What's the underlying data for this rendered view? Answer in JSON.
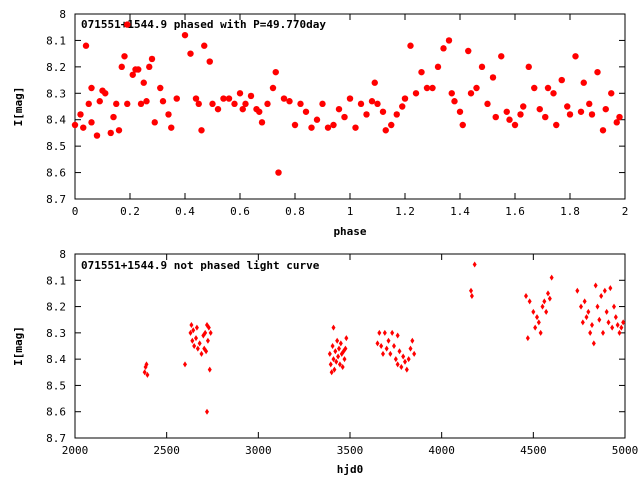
{
  "chart_data": [
    {
      "type": "scatter",
      "title": "071551+1544.9 phased with P=49.770day",
      "xlabel": "phase",
      "ylabel": "I[mag]",
      "xlim": [
        0,
        2
      ],
      "ylim": [
        7.99,
        8.7
      ],
      "y_inverted": true,
      "xticks": [
        "0",
        "0.2",
        "0.4",
        "0.6",
        "0.8",
        "1",
        "1.2",
        "1.4",
        "1.6",
        "1.8",
        "2"
      ],
      "yticks": [
        "8",
        "8.1",
        "8.2",
        "8.3",
        "8.4",
        "8.5",
        "8.6",
        "8.7"
      ],
      "marker": "filled-circle-large",
      "color": "#ff0000",
      "series": [
        {
          "points": [
            [
              0.0,
              8.42
            ],
            [
              0.02,
              8.38
            ],
            [
              0.03,
              8.43
            ],
            [
              0.04,
              8.12
            ],
            [
              0.05,
              8.34
            ],
            [
              0.06,
              8.28
            ],
            [
              0.06,
              8.41
            ],
            [
              0.08,
              8.46
            ],
            [
              0.09,
              8.33
            ],
            [
              0.1,
              8.29
            ],
            [
              0.11,
              8.3
            ],
            [
              0.13,
              8.45
            ],
            [
              0.14,
              8.39
            ],
            [
              0.15,
              8.34
            ],
            [
              0.16,
              8.44
            ],
            [
              0.17,
              8.2
            ],
            [
              0.18,
              8.16
            ],
            [
              0.19,
              8.04
            ],
            [
              0.19,
              8.34
            ],
            [
              0.21,
              8.23
            ],
            [
              0.22,
              8.21
            ],
            [
              0.23,
              8.21
            ],
            [
              0.24,
              8.34
            ],
            [
              0.25,
              8.26
            ],
            [
              0.26,
              8.33
            ],
            [
              0.27,
              8.2
            ],
            [
              0.28,
              8.17
            ],
            [
              0.29,
              8.41
            ],
            [
              0.31,
              8.28
            ],
            [
              0.32,
              8.33
            ],
            [
              0.34,
              8.38
            ],
            [
              0.35,
              8.43
            ],
            [
              0.37,
              8.32
            ],
            [
              0.4,
              8.08
            ],
            [
              0.42,
              8.15
            ],
            [
              0.44,
              8.32
            ],
            [
              0.45,
              8.34
            ],
            [
              0.46,
              8.44
            ],
            [
              0.47,
              8.12
            ],
            [
              0.49,
              8.18
            ],
            [
              0.5,
              8.34
            ],
            [
              0.52,
              8.36
            ],
            [
              0.54,
              8.32
            ],
            [
              0.56,
              8.32
            ],
            [
              0.58,
              8.34
            ],
            [
              0.6,
              8.3
            ],
            [
              0.61,
              8.36
            ],
            [
              0.62,
              8.34
            ],
            [
              0.64,
              8.31
            ],
            [
              0.66,
              8.36
            ],
            [
              0.67,
              8.37
            ],
            [
              0.68,
              8.41
            ],
            [
              0.7,
              8.34
            ],
            [
              0.72,
              8.28
            ],
            [
              0.73,
              8.22
            ],
            [
              0.74,
              8.6
            ],
            [
              0.76,
              8.32
            ],
            [
              0.78,
              8.33
            ],
            [
              0.8,
              8.42
            ],
            [
              0.82,
              8.34
            ],
            [
              0.84,
              8.37
            ],
            [
              0.86,
              8.43
            ],
            [
              0.88,
              8.4
            ],
            [
              0.9,
              8.34
            ],
            [
              0.92,
              8.43
            ],
            [
              0.94,
              8.42
            ],
            [
              0.96,
              8.36
            ],
            [
              0.98,
              8.39
            ],
            [
              1.0,
              8.32
            ],
            [
              1.02,
              8.43
            ],
            [
              1.04,
              8.34
            ],
            [
              1.06,
              8.38
            ],
            [
              1.08,
              8.33
            ],
            [
              1.09,
              8.26
            ],
            [
              1.1,
              8.34
            ],
            [
              1.12,
              8.37
            ],
            [
              1.13,
              8.44
            ],
            [
              1.15,
              8.42
            ],
            [
              1.17,
              8.38
            ],
            [
              1.19,
              8.35
            ],
            [
              1.2,
              8.32
            ],
            [
              1.22,
              8.12
            ],
            [
              1.24,
              8.3
            ],
            [
              1.26,
              8.22
            ],
            [
              1.28,
              8.28
            ],
            [
              1.3,
              8.28
            ],
            [
              1.32,
              8.2
            ],
            [
              1.34,
              8.13
            ],
            [
              1.36,
              8.1
            ],
            [
              1.37,
              8.3
            ],
            [
              1.38,
              8.33
            ],
            [
              1.4,
              8.37
            ],
            [
              1.41,
              8.42
            ],
            [
              1.43,
              8.14
            ],
            [
              1.44,
              8.3
            ],
            [
              1.46,
              8.28
            ],
            [
              1.48,
              8.2
            ],
            [
              1.5,
              8.34
            ],
            [
              1.52,
              8.24
            ],
            [
              1.53,
              8.39
            ],
            [
              1.55,
              8.16
            ],
            [
              1.57,
              8.37
            ],
            [
              1.58,
              8.4
            ],
            [
              1.6,
              8.42
            ],
            [
              1.62,
              8.38
            ],
            [
              1.63,
              8.35
            ],
            [
              1.65,
              8.2
            ],
            [
              1.67,
              8.28
            ],
            [
              1.69,
              8.36
            ],
            [
              1.71,
              8.39
            ],
            [
              1.72,
              8.28
            ],
            [
              1.74,
              8.3
            ],
            [
              1.75,
              8.42
            ],
            [
              1.77,
              8.25
            ],
            [
              1.79,
              8.35
            ],
            [
              1.8,
              8.38
            ],
            [
              1.82,
              8.16
            ],
            [
              1.84,
              8.37
            ],
            [
              1.85,
              8.26
            ],
            [
              1.87,
              8.34
            ],
            [
              1.88,
              8.38
            ],
            [
              1.9,
              8.22
            ],
            [
              1.92,
              8.44
            ],
            [
              1.93,
              8.36
            ],
            [
              1.95,
              8.3
            ],
            [
              1.97,
              8.41
            ],
            [
              1.98,
              8.39
            ]
          ]
        }
      ]
    },
    {
      "type": "scatter",
      "title": "071551+1544.9 not phased light curve",
      "xlabel": "hjd0",
      "ylabel": "I[mag]",
      "xlim": [
        2000,
        5000
      ],
      "ylim": [
        8.0,
        8.7
      ],
      "y_inverted": true,
      "xticks": [
        "2000",
        "2500",
        "3000",
        "3500",
        "4000",
        "4500",
        "5000"
      ],
      "yticks": [
        "8",
        "8.1",
        "8.2",
        "8.3",
        "8.4",
        "8.5",
        "8.6",
        "8.7"
      ],
      "marker": "small-diamond",
      "color": "#ff0000",
      "series": [
        {
          "points": [
            [
              2380,
              8.45
            ],
            [
              2385,
              8.43
            ],
            [
              2390,
              8.42
            ],
            [
              2395,
              8.46
            ],
            [
              2600,
              8.42
            ],
            [
              2630,
              8.3
            ],
            [
              2635,
              8.27
            ],
            [
              2640,
              8.33
            ],
            [
              2645,
              8.29
            ],
            [
              2650,
              8.35
            ],
            [
              2660,
              8.32
            ],
            [
              2665,
              8.28
            ],
            [
              2670,
              8.36
            ],
            [
              2680,
              8.34
            ],
            [
              2690,
              8.38
            ],
            [
              2700,
              8.31
            ],
            [
              2705,
              8.36
            ],
            [
              2710,
              8.3
            ],
            [
              2715,
              8.37
            ],
            [
              2720,
              8.27
            ],
            [
              2725,
              8.33
            ],
            [
              2730,
              8.28
            ],
            [
              2735,
              8.44
            ],
            [
              2740,
              8.3
            ],
            [
              2720,
              8.6
            ],
            [
              3390,
              8.38
            ],
            [
              3395,
              8.42
            ],
            [
              3400,
              8.45
            ],
            [
              3405,
              8.35
            ],
            [
              3410,
              8.4
            ],
            [
              3415,
              8.44
            ],
            [
              3420,
              8.37
            ],
            [
              3425,
              8.41
            ],
            [
              3430,
              8.33
            ],
            [
              3435,
              8.39
            ],
            [
              3440,
              8.36
            ],
            [
              3445,
              8.42
            ],
            [
              3450,
              8.34
            ],
            [
              3455,
              8.38
            ],
            [
              3460,
              8.43
            ],
            [
              3465,
              8.37
            ],
            [
              3470,
              8.4
            ],
            [
              3475,
              8.36
            ],
            [
              3480,
              8.32
            ],
            [
              3410,
              8.28
            ],
            [
              3650,
              8.34
            ],
            [
              3660,
              8.3
            ],
            [
              3670,
              8.35
            ],
            [
              3680,
              8.38
            ],
            [
              3690,
              8.3
            ],
            [
              3700,
              8.36
            ],
            [
              3710,
              8.33
            ],
            [
              3720,
              8.38
            ],
            [
              3730,
              8.3
            ],
            [
              3740,
              8.35
            ],
            [
              3750,
              8.4
            ],
            [
              3760,
              8.42
            ],
            [
              3770,
              8.37
            ],
            [
              3780,
              8.43
            ],
            [
              3790,
              8.39
            ],
            [
              3800,
              8.41
            ],
            [
              3810,
              8.44
            ],
            [
              3820,
              8.4
            ],
            [
              3830,
              8.36
            ],
            [
              3840,
              8.33
            ],
            [
              3850,
              8.38
            ],
            [
              3760,
              8.31
            ],
            [
              4160,
              8.14
            ],
            [
              4165,
              8.16
            ],
            [
              4180,
              8.04
            ],
            [
              4460,
              8.16
            ],
            [
              4470,
              8.32
            ],
            [
              4480,
              8.18
            ],
            [
              4500,
              8.22
            ],
            [
              4510,
              8.28
            ],
            [
              4520,
              8.24
            ],
            [
              4530,
              8.26
            ],
            [
              4540,
              8.3
            ],
            [
              4550,
              8.2
            ],
            [
              4560,
              8.18
            ],
            [
              4570,
              8.22
            ],
            [
              4580,
              8.15
            ],
            [
              4590,
              8.17
            ],
            [
              4600,
              8.09
            ],
            [
              4740,
              8.14
            ],
            [
              4760,
              8.2
            ],
            [
              4770,
              8.26
            ],
            [
              4780,
              8.18
            ],
            [
              4790,
              8.24
            ],
            [
              4800,
              8.22
            ],
            [
              4810,
              8.3
            ],
            [
              4820,
              8.27
            ],
            [
              4830,
              8.34
            ],
            [
              4840,
              8.12
            ],
            [
              4850,
              8.2
            ],
            [
              4860,
              8.25
            ],
            [
              4870,
              8.16
            ],
            [
              4880,
              8.3
            ],
            [
              4890,
              8.14
            ],
            [
              4900,
              8.22
            ],
            [
              4910,
              8.26
            ],
            [
              4920,
              8.13
            ],
            [
              4930,
              8.28
            ],
            [
              4940,
              8.2
            ],
            [
              4950,
              8.24
            ],
            [
              4960,
              8.27
            ],
            [
              4970,
              8.3
            ],
            [
              4980,
              8.28
            ],
            [
              4990,
              8.26
            ]
          ]
        }
      ]
    }
  ]
}
